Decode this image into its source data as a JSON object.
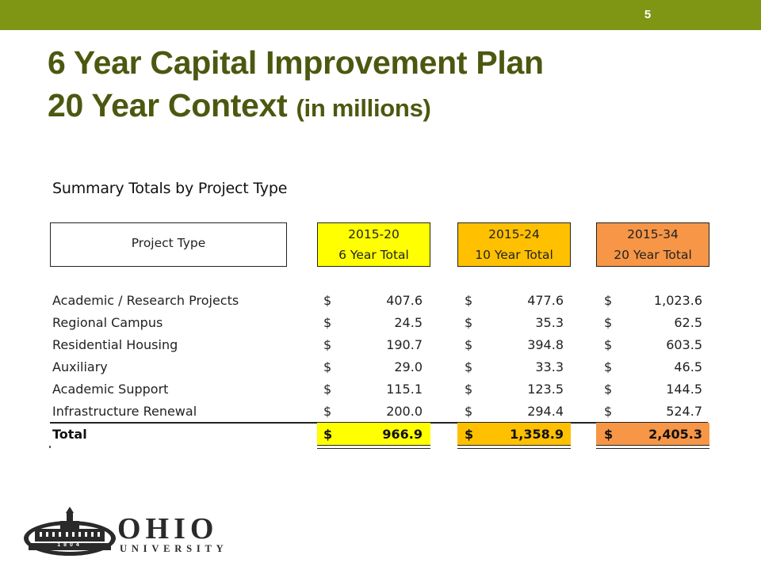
{
  "slide": {
    "number": "5"
  },
  "title": {
    "line1": "6 Year Capital Improvement Plan",
    "line2_main": "20 Year Context",
    "line2_suffix": "(in millions)"
  },
  "table": {
    "heading": "Summary Totals by Project Type",
    "project_type_header": "Project Type",
    "columns": [
      {
        "years": "2015-20",
        "label": "6 Year Total",
        "color": "#ffff00"
      },
      {
        "years": "2015-24",
        "label": "10 Year Total",
        "color": "#ffc000"
      },
      {
        "years": "2015-34",
        "label": "20 Year Total",
        "color": "#f79646"
      }
    ],
    "currency_symbol": "$",
    "rows": [
      {
        "name": "Academic / Research Projects",
        "values": [
          "407.6",
          "477.6",
          "1,023.6"
        ]
      },
      {
        "name": "Regional Campus",
        "values": [
          "24.5",
          "35.3",
          "62.5"
        ]
      },
      {
        "name": "Residential Housing",
        "values": [
          "190.7",
          "394.8",
          "603.5"
        ]
      },
      {
        "name": "Auxiliary",
        "values": [
          "29.0",
          "33.3",
          "46.5"
        ]
      },
      {
        "name": "Academic Support",
        "values": [
          "115.1",
          "123.5",
          "144.5"
        ]
      },
      {
        "name": "Infrastructure Renewal",
        "values": [
          "200.0",
          "294.4",
          "524.7"
        ]
      }
    ],
    "total": {
      "name": "Total",
      "values": [
        "966.9",
        "1,358.9",
        "2,405.3"
      ]
    }
  },
  "logo": {
    "word": "OHIO",
    "sub": "UNIVERSITY",
    "year": "1804"
  },
  "colors": {
    "top_bar": "#7f9514",
    "title": "#4c5810"
  }
}
